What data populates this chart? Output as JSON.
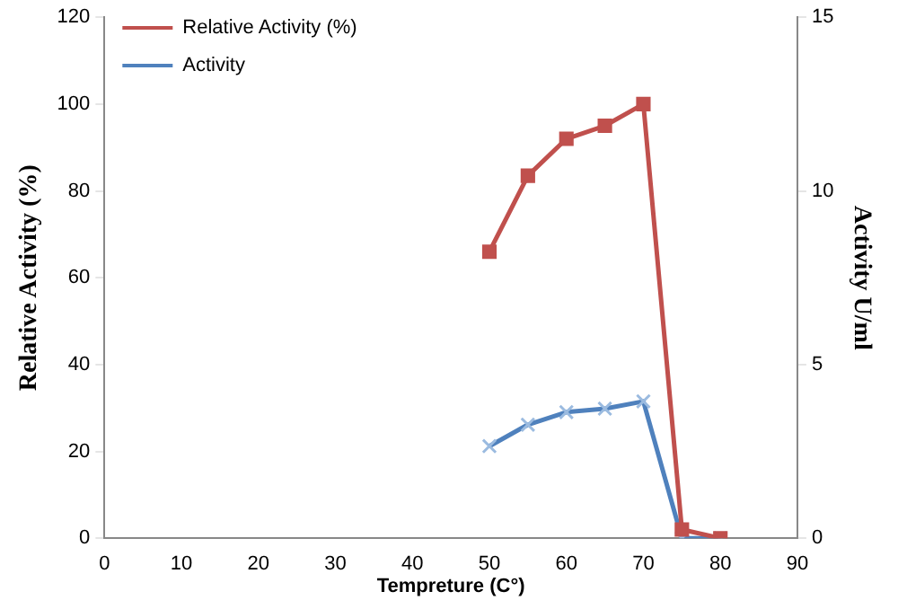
{
  "chart_data": {
    "type": "line",
    "xlabel": "Tempreture (C°)",
    "ylabel": "Relative Activity (%)",
    "y2label": "Activity U/ml",
    "x": [
      50,
      55,
      60,
      65,
      70,
      75,
      80
    ],
    "series": [
      {
        "name": "Relative Activity (%)",
        "color": "#c0504d",
        "marker": "square",
        "values": [
          66,
          83.5,
          92,
          95,
          100,
          2,
          0
        ]
      },
      {
        "name": "Activity",
        "color": "#4f81bd",
        "marker": "cross",
        "axis": "y2",
        "values": [
          2.65,
          3.27,
          3.63,
          3.73,
          3.94,
          0,
          0
        ]
      }
    ],
    "xlim": [
      0,
      90
    ],
    "xticks": [
      0,
      10,
      20,
      30,
      40,
      50,
      60,
      70,
      80,
      90
    ],
    "ylim": [
      0,
      120
    ],
    "yticks": [
      0,
      20,
      40,
      60,
      80,
      100,
      120
    ],
    "y2lim": [
      0,
      15
    ],
    "y2ticks": [
      0,
      5,
      10,
      15
    ],
    "grid": false,
    "legend": "top left"
  }
}
